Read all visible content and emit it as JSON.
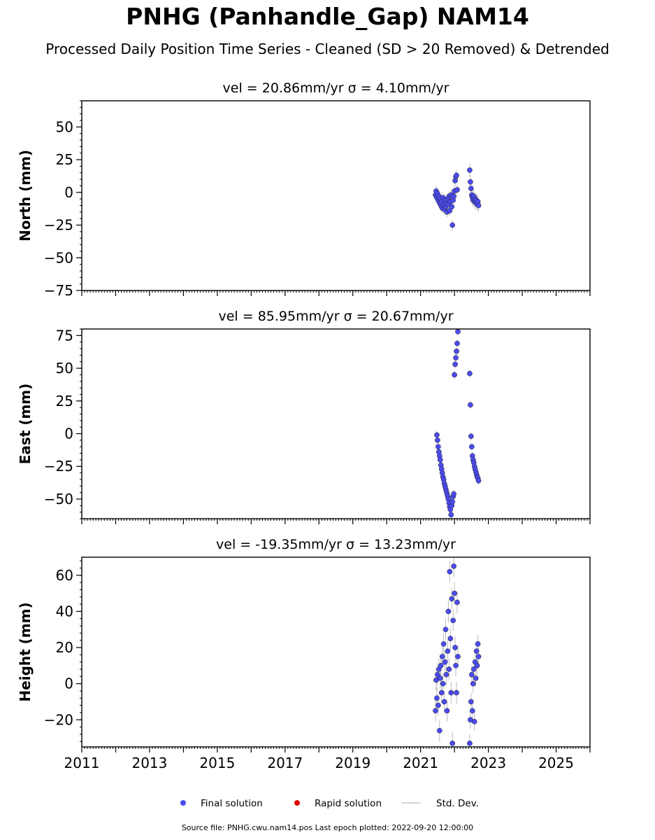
{
  "title": "PNHG (Panhandle_Gap) NAM14",
  "subtitle": "Processed Daily Position Time Series - Cleaned (SD > 20 Removed) & Detrended",
  "footer": "Source file: PNHG.cwu.nam14.pos  Last epoch plotted: 2022-09-20 12:00:00",
  "legend": [
    {
      "label": "Final solution",
      "color": "#4b4bf0",
      "kind": "dot"
    },
    {
      "label": "Rapid solution",
      "color": "#e00000",
      "kind": "dot"
    },
    {
      "label": "Std. Dev.",
      "color": "#c8c8c8",
      "kind": "line"
    }
  ],
  "colors": {
    "final": "#4b4bf0",
    "stddev": "#bbbbbb"
  },
  "chart_data": [
    {
      "type": "scatter",
      "panel_title": "vel = 20.86mm/yr   σ = 4.10mm/yr",
      "ylabel": "North (mm)",
      "xlim": [
        2011,
        2026
      ],
      "ylim": [
        -75,
        70
      ],
      "yticks": [
        50,
        25,
        0,
        -25,
        -50,
        -75
      ],
      "ytick_labels": [
        "50",
        "25",
        "0",
        "−25",
        "−50",
        "−75"
      ],
      "xticks": [
        2011,
        2013,
        2015,
        2017,
        2019,
        2021,
        2023,
        2025
      ],
      "xtick_labels": [],
      "series": [
        {
          "x": [
            2021.44,
            2021.46,
            2021.48,
            2021.5,
            2021.52,
            2021.54,
            2021.56,
            2021.58,
            2021.6,
            2021.62,
            2021.64,
            2021.66,
            2021.68,
            2021.7,
            2021.72,
            2021.74,
            2021.76,
            2021.78,
            2021.8,
            2021.82,
            2021.84,
            2021.86,
            2021.88,
            2021.9,
            2021.92,
            2021.94,
            2021.96,
            2021.98,
            2022.0,
            2022.02,
            2022.04,
            2022.06,
            2022.08,
            2022.45,
            2022.47,
            2022.49,
            2022.51,
            2022.53,
            2022.55,
            2022.57,
            2022.59,
            2022.61,
            2022.63,
            2022.65,
            2022.67,
            2022.69,
            2022.71
          ],
          "y": [
            -2,
            1,
            -4,
            -1,
            -6,
            -3,
            -8,
            -5,
            -10,
            -7,
            -12,
            -4,
            -9,
            -13,
            -6,
            -11,
            -8,
            -15,
            -5,
            -9,
            -3,
            -14,
            -7,
            -2,
            -11,
            -25,
            -6,
            -3,
            1,
            9,
            12,
            13,
            2,
            17,
            8,
            3,
            -2,
            -4,
            -6,
            -3,
            -7,
            -5,
            -8,
            -6,
            -9,
            -7,
            -10
          ],
          "sd": [
            4,
            4,
            4,
            4,
            4,
            4,
            4,
            4,
            4,
            4,
            4,
            4,
            4,
            4,
            4,
            4,
            4,
            4,
            4,
            4,
            4,
            4,
            4,
            4,
            4,
            4,
            4,
            4,
            4,
            4,
            4,
            4,
            4,
            5,
            5,
            5,
            5,
            5,
            5,
            5,
            5,
            5,
            5,
            5,
            5,
            5,
            5
          ]
        }
      ]
    },
    {
      "type": "scatter",
      "panel_title": "vel = 85.95mm/yr   σ = 20.67mm/yr",
      "ylabel": "East (mm)",
      "xlim": [
        2011,
        2026
      ],
      "ylim": [
        -65,
        80
      ],
      "yticks": [
        75,
        50,
        25,
        0,
        -25,
        -50
      ],
      "ytick_labels": [
        "75",
        "50",
        "25",
        "0",
        "−25",
        "−50"
      ],
      "xticks": [
        2011,
        2013,
        2015,
        2017,
        2019,
        2021,
        2023,
        2025
      ],
      "xtick_labels": [],
      "series": [
        {
          "x": [
            2021.48,
            2021.5,
            2021.52,
            2021.54,
            2021.56,
            2021.58,
            2021.6,
            2021.62,
            2021.64,
            2021.66,
            2021.68,
            2021.7,
            2021.72,
            2021.74,
            2021.76,
            2021.78,
            2021.8,
            2021.82,
            2021.84,
            2021.86,
            2021.88,
            2021.9,
            2021.92,
            2021.94,
            2021.96,
            2021.98,
            2022.0,
            2022.02,
            2022.04,
            2022.06,
            2022.08,
            2022.1,
            2022.45,
            2022.47,
            2022.49,
            2022.51,
            2022.53,
            2022.55,
            2022.57,
            2022.59,
            2022.61,
            2022.63,
            2022.65,
            2022.67,
            2022.69,
            2022.71
          ],
          "y": [
            -1,
            -5,
            -10,
            -14,
            -17,
            -20,
            -24,
            -27,
            -30,
            -33,
            -35,
            -38,
            -40,
            -42,
            -44,
            -46,
            -48,
            -50,
            -53,
            -56,
            -58,
            -62,
            -55,
            -52,
            -48,
            -46,
            45,
            53,
            58,
            63,
            69,
            78,
            46,
            22,
            -2,
            -10,
            -17,
            -20,
            -22,
            -25,
            -27,
            -29,
            -31,
            -33,
            -34,
            -36
          ],
          "sd": [
            3,
            3,
            3,
            3,
            3,
            3,
            3,
            3,
            3,
            3,
            3,
            3,
            3,
            3,
            3,
            3,
            3,
            3,
            3,
            3,
            3,
            3,
            3,
            3,
            3,
            3,
            3,
            3,
            3,
            3,
            3,
            3,
            3,
            3,
            3,
            3,
            3,
            3,
            3,
            3,
            3,
            3,
            3,
            3,
            3,
            3
          ]
        }
      ]
    },
    {
      "type": "scatter",
      "panel_title": "vel = -19.35mm/yr   σ = 13.23mm/yr",
      "ylabel": "Height (mm)",
      "xlim": [
        2011,
        2026
      ],
      "ylim": [
        -35,
        70
      ],
      "yticks": [
        60,
        40,
        20,
        0,
        -20
      ],
      "ytick_labels": [
        "60",
        "40",
        "20",
        "0",
        "−20"
      ],
      "xticks": [
        2011,
        2013,
        2015,
        2017,
        2019,
        2021,
        2023,
        2025
      ],
      "xtick_labels": [
        "2011",
        "2013",
        "2015",
        "2017",
        "2019",
        "2021",
        "2023",
        "2025"
      ],
      "series": [
        {
          "x": [
            2021.44,
            2021.46,
            2021.48,
            2021.5,
            2021.52,
            2021.54,
            2021.56,
            2021.58,
            2021.6,
            2021.62,
            2021.64,
            2021.66,
            2021.68,
            2021.7,
            2021.72,
            2021.74,
            2021.76,
            2021.78,
            2021.8,
            2021.82,
            2021.84,
            2021.86,
            2021.88,
            2021.9,
            2021.92,
            2021.94,
            2021.96,
            2021.98,
            2022.0,
            2022.02,
            2022.04,
            2022.06,
            2022.08,
            2022.1,
            2022.45,
            2022.47,
            2022.49,
            2022.51,
            2022.53,
            2022.55,
            2022.57,
            2022.59,
            2022.61,
            2022.63,
            2022.65,
            2022.67,
            2022.69,
            2022.71
          ],
          "y": [
            -15,
            2,
            -8,
            5,
            -12,
            8,
            -26,
            3,
            10,
            -5,
            15,
            0,
            22,
            -10,
            12,
            30,
            5,
            -15,
            18,
            40,
            8,
            62,
            25,
            -5,
            47,
            -33,
            35,
            65,
            50,
            20,
            10,
            -5,
            45,
            15,
            -33,
            -20,
            -10,
            5,
            -15,
            0,
            8,
            -21,
            12,
            3,
            18,
            10,
            22,
            15
          ],
          "sd": [
            6,
            6,
            6,
            6,
            6,
            6,
            6,
            6,
            6,
            6,
            6,
            6,
            6,
            6,
            6,
            6,
            6,
            6,
            6,
            6,
            6,
            6,
            6,
            6,
            6,
            6,
            6,
            6,
            6,
            6,
            6,
            6,
            6,
            6,
            5,
            5,
            5,
            5,
            5,
            5,
            5,
            5,
            5,
            5,
            5,
            5,
            5,
            5
          ]
        }
      ]
    }
  ]
}
